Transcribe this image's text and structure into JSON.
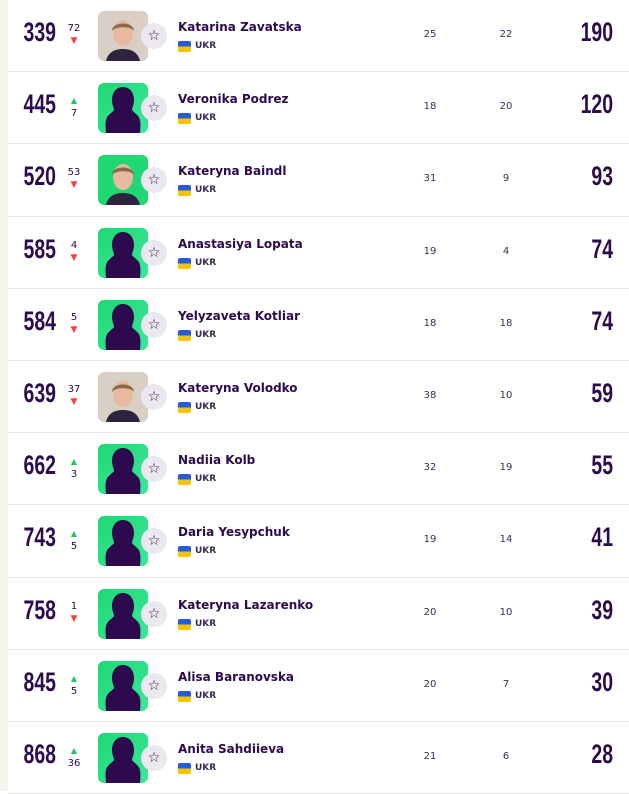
{
  "colors": {
    "primary": "#2d0a4e",
    "up": "#22c55e",
    "down": "#ef4444",
    "silhouette_bg": "#1fd873"
  },
  "rows": [
    {
      "rank": "339",
      "change": "72",
      "dir": "down",
      "photo": "photo",
      "name": "Katarina Zavatska",
      "nat": "UKR",
      "c1": "25",
      "c2": "22",
      "points": "190"
    },
    {
      "rank": "445",
      "change": "7",
      "dir": "up",
      "photo": "silhouette",
      "name": "Veronika Podrez",
      "nat": "UKR",
      "c1": "18",
      "c2": "20",
      "points": "120"
    },
    {
      "rank": "520",
      "change": "53",
      "dir": "down",
      "photo": "photo-green",
      "name": "Kateryna Baindl",
      "nat": "UKR",
      "c1": "31",
      "c2": "9",
      "points": "93"
    },
    {
      "rank": "585",
      "change": "4",
      "dir": "down",
      "photo": "silhouette",
      "name": "Anastasiya Lopata",
      "nat": "UKR",
      "c1": "19",
      "c2": "4",
      "points": "74"
    },
    {
      "rank": "584",
      "change": "5",
      "dir": "down",
      "photo": "silhouette",
      "name": "Yelyzaveta Kotliar",
      "nat": "UKR",
      "c1": "18",
      "c2": "18",
      "points": "74"
    },
    {
      "rank": "639",
      "change": "37",
      "dir": "down",
      "photo": "photo",
      "name": "Kateryna Volodko",
      "nat": "UKR",
      "c1": "38",
      "c2": "10",
      "points": "59"
    },
    {
      "rank": "662",
      "change": "3",
      "dir": "up",
      "photo": "silhouette",
      "name": "Nadiia Kolb",
      "nat": "UKR",
      "c1": "32",
      "c2": "19",
      "points": "55"
    },
    {
      "rank": "743",
      "change": "5",
      "dir": "up",
      "photo": "silhouette",
      "name": "Daria Yesypchuk",
      "nat": "UKR",
      "c1": "19",
      "c2": "14",
      "points": "41"
    },
    {
      "rank": "758",
      "change": "1",
      "dir": "down",
      "photo": "silhouette",
      "name": "Kateryna Lazarenko",
      "nat": "UKR",
      "c1": "20",
      "c2": "10",
      "points": "39"
    },
    {
      "rank": "845",
      "change": "5",
      "dir": "up",
      "photo": "silhouette",
      "name": "Alisa Baranovska",
      "nat": "UKR",
      "c1": "20",
      "c2": "7",
      "points": "30"
    },
    {
      "rank": "868",
      "change": "36",
      "dir": "up",
      "photo": "silhouette",
      "name": "Anita Sahdiieva",
      "nat": "UKR",
      "c1": "21",
      "c2": "6",
      "points": "28"
    }
  ]
}
